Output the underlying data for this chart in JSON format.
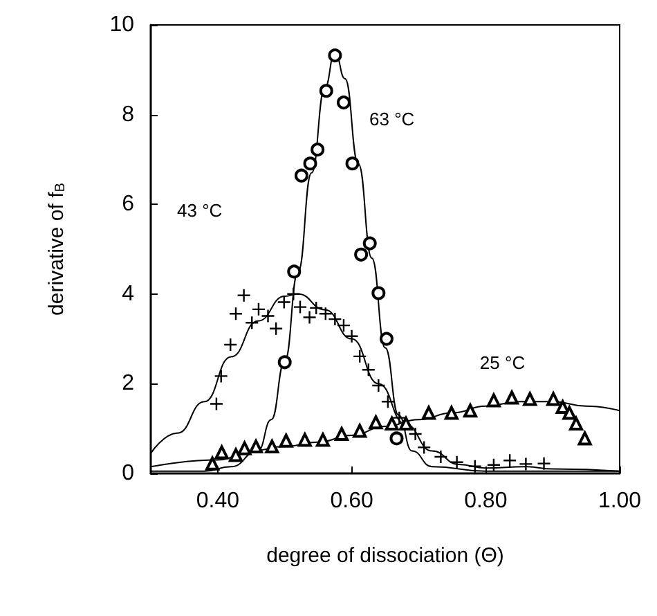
{
  "chart_data": {
    "type": "scatter",
    "xlabel": "degree of dissociation (Θ)",
    "ylabel": "derivative of f$_{B}$",
    "xlim": [
      0.3,
      1.0
    ],
    "xticks": [
      {
        "value": 0.4,
        "label": "0.40"
      },
      {
        "value": 0.6,
        "label": "0.60"
      },
      {
        "value": 0.8,
        "label": "0.80"
      },
      {
        "value": 1.0,
        "label": "1.00"
      }
    ],
    "ylim": [
      0,
      10
    ],
    "yticks": [
      0,
      2,
      4,
      6,
      8,
      10
    ],
    "grid": false,
    "series": [
      {
        "marker": "circle",
        "color": "#000000",
        "x": [
          0.575,
          0.562,
          0.588,
          0.549,
          0.538,
          0.525,
          0.601,
          0.627,
          0.614,
          0.514,
          0.64,
          0.652,
          0.5,
          0.667
        ],
        "values": [
          9.32,
          8.53,
          8.27,
          7.22,
          6.91,
          6.64,
          6.91,
          5.13,
          4.88,
          4.5,
          4.02,
          3.0,
          2.48,
          0.78
        ]
      },
      {
        "marker": "cross",
        "color": "#000000",
        "x": [
          0.398,
          0.405,
          0.419,
          0.427,
          0.439,
          0.451,
          0.461,
          0.475,
          0.487,
          0.499,
          0.513,
          0.523,
          0.537,
          0.547,
          0.561,
          0.575,
          0.588,
          0.6,
          0.612,
          0.625,
          0.64,
          0.654,
          0.671,
          0.695,
          0.708,
          0.733,
          0.757,
          0.784,
          0.812,
          0.836,
          0.86,
          0.887
        ],
        "values": [
          1.55,
          2.17,
          2.87,
          3.56,
          3.97,
          3.36,
          3.66,
          3.51,
          3.23,
          3.82,
          4.0,
          3.71,
          3.48,
          3.69,
          3.56,
          3.44,
          3.3,
          3.06,
          2.61,
          2.31,
          1.96,
          1.6,
          1.24,
          0.88,
          0.58,
          0.37,
          0.25,
          0.16,
          0.19,
          0.29,
          0.21,
          0.22
        ]
      },
      {
        "marker": "triangle",
        "color": "#000000",
        "x": [
          0.392,
          0.406,
          0.427,
          0.44,
          0.457,
          0.481,
          0.502,
          0.53,
          0.557,
          0.585,
          0.612,
          0.636,
          0.66,
          0.681,
          0.715,
          0.749,
          0.777,
          0.812,
          0.839,
          0.866,
          0.901,
          0.915,
          0.925,
          0.935,
          0.948
        ],
        "values": [
          0.22,
          0.47,
          0.41,
          0.56,
          0.6,
          0.6,
          0.73,
          0.75,
          0.75,
          0.88,
          0.95,
          1.14,
          1.11,
          1.11,
          1.35,
          1.35,
          1.4,
          1.63,
          1.69,
          1.66,
          1.66,
          1.48,
          1.35,
          1.11,
          0.78
        ]
      },
      {
        "type": "line",
        "marker": "none",
        "line_style": "solid",
        "color": "#000000",
        "x": [
          0.3,
          0.38,
          0.42,
          0.46,
          0.48,
          0.5,
          0.52,
          0.54,
          0.56,
          0.575,
          0.59,
          0.61,
          0.63,
          0.65,
          0.67,
          0.69,
          0.72,
          0.8,
          1.0
        ],
        "values": [
          0.05,
          0.05,
          0.15,
          0.5,
          1.2,
          2.5,
          4.5,
          6.7,
          8.6,
          9.4,
          8.8,
          6.9,
          4.8,
          2.8,
          1.3,
          0.5,
          0.15,
          0.05,
          0.05
        ]
      },
      {
        "type": "line",
        "marker": "none",
        "line_style": "solid",
        "color": "#000000",
        "x": [
          0.3,
          0.34,
          0.38,
          0.42,
          0.46,
          0.5,
          0.52,
          0.56,
          0.6,
          0.64,
          0.68,
          0.72,
          0.76,
          0.8,
          0.86,
          0.9,
          1.0
        ],
        "values": [
          0.45,
          0.9,
          1.6,
          2.6,
          3.4,
          3.95,
          4.0,
          3.65,
          3.0,
          2.0,
          1.1,
          0.5,
          0.2,
          0.12,
          0.15,
          0.1,
          0.05
        ]
      },
      {
        "type": "line",
        "marker": "none",
        "line_style": "solid",
        "color": "#000000",
        "x": [
          0.3,
          0.4,
          0.45,
          0.5,
          0.55,
          0.6,
          0.65,
          0.7,
          0.75,
          0.8,
          0.85,
          0.9,
          0.95,
          1.0
        ],
        "values": [
          0.15,
          0.3,
          0.5,
          0.6,
          0.7,
          0.85,
          1.05,
          1.2,
          1.35,
          1.5,
          1.6,
          1.6,
          1.5,
          1.4
        ]
      }
    ],
    "annotations": [
      "63 °C",
      "43 °C",
      "25 °C"
    ]
  }
}
